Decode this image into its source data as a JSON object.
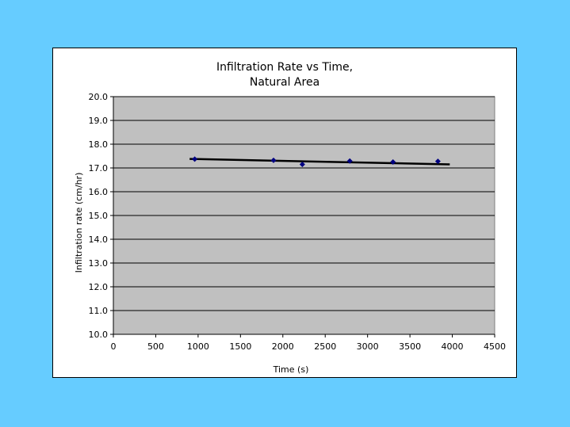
{
  "chart_data": {
    "type": "scatter",
    "title_lines": [
      "Infiltration Rate vs Time,",
      "Natural Area"
    ],
    "xlabel": "Time (s)",
    "ylabel": "Infiltration rate (cm/hr)",
    "xlim": [
      0,
      4500
    ],
    "ylim": [
      10.0,
      20.0
    ],
    "x_ticks": [
      0,
      500,
      1000,
      1500,
      2000,
      2500,
      3000,
      3500,
      4000,
      4500
    ],
    "y_ticks": [
      10.0,
      11.0,
      12.0,
      13.0,
      14.0,
      15.0,
      16.0,
      17.0,
      18.0,
      19.0,
      20.0
    ],
    "y_tick_decimals": 1,
    "grid": "horizontal",
    "plot_background": "#c0c0c0",
    "marker_color": "#000080",
    "series": [
      {
        "points": [
          {
            "x": 960,
            "y": 17.37
          },
          {
            "x": 1890,
            "y": 17.32
          },
          {
            "x": 2230,
            "y": 17.15
          },
          {
            "x": 2790,
            "y": 17.29
          },
          {
            "x": 3300,
            "y": 17.25
          },
          {
            "x": 3830,
            "y": 17.28
          }
        ]
      }
    ],
    "trendline": {
      "color": "#000000",
      "x_start": 900,
      "x_end": 3970,
      "y_start": 17.38,
      "y_end": 17.15
    }
  }
}
